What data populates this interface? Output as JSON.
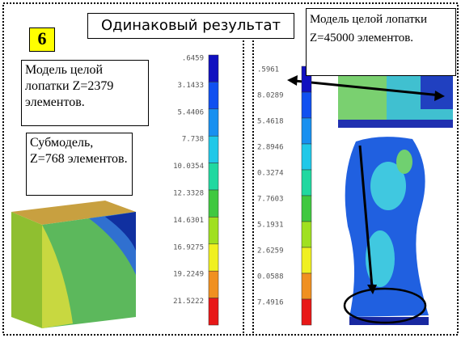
{
  "slide_number": "6",
  "title": "Одинаковый результат",
  "labels": {
    "left_model": "Модель целой лопатки Z=2379 элементов.",
    "submodel": "Субмодель, Z=768 элементов.",
    "right_model": "Модель целой лопатки Z=45000 элементов."
  },
  "left_legend": [
    ".6459",
    "3.1433",
    "5.4406",
    "7.738",
    "10.0354",
    "12.3328",
    "14.6301",
    "16.9275",
    "19.2249",
    "21.5222"
  ],
  "right_legend": [
    ".5961",
    "8.0289",
    "5.4618",
    "2.8946",
    "0.3274",
    "7.7603",
    "5.1931",
    "2.6259",
    "0.0588",
    "7.4916"
  ]
}
